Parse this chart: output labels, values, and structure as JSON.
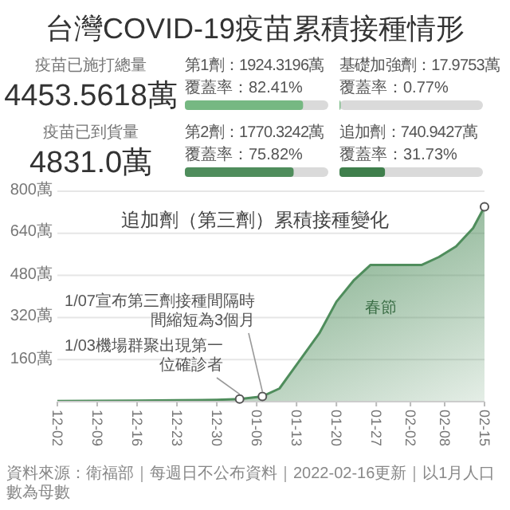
{
  "chart_data": [
    {
      "type": "other",
      "title": "台灣COVID-19疫苗累積接種情形",
      "annotations": [
        "疫苗已施打總量",
        "4453.5618萬",
        "疫苗已到貨量",
        "4831.0萬"
      ]
    },
    {
      "type": "other",
      "title": "第1劑：1924.3196萬",
      "values": [
        82.41
      ],
      "value_labels": [
        "覆蓋率：82.41%"
      ],
      "color": "#76b882"
    },
    {
      "type": "other",
      "title": "基礎加強劑：17.9753萬",
      "values": [
        0.77
      ],
      "value_labels": [
        "覆蓋率：0.77%"
      ],
      "color": "#76b882"
    },
    {
      "type": "other",
      "title": "第2劑：1770.3242萬",
      "values": [
        75.82
      ],
      "value_labels": [
        "覆蓋率：75.82%"
      ],
      "color": "#4f8d5c"
    },
    {
      "type": "other",
      "title": "追加劑：740.9427萬",
      "values": [
        31.73
      ],
      "value_labels": [
        "覆蓋率：31.73%"
      ],
      "color": "#3f7f4c"
    },
    {
      "type": "area",
      "title": "追加劑（第三劑）累積接種變化",
      "color": "#4f8d5c",
      "grid": "y",
      "marker": "none",
      "x": [
        "2021-12-02",
        "2021-12-09",
        "2021-12-16",
        "2021-12-23",
        "2021-12-30",
        "2022-01-03",
        "2022-01-07",
        "2022-01-10",
        "2022-01-12",
        "2022-01-14",
        "2022-01-17",
        "2022-01-20",
        "2022-01-23",
        "2022-01-26",
        "2022-02-04",
        "2022-02-07",
        "2022-02-10",
        "2022-02-13",
        "2022-02-15"
      ],
      "values": [
        2,
        3,
        4,
        5,
        7,
        10,
        20,
        50,
        110,
        170,
        260,
        380,
        460,
        520,
        520,
        550,
        590,
        660,
        741
      ],
      "xlim": [
        "2021-12-02",
        "2022-02-15"
      ],
      "xticks": [
        {
          "value": "2021-12-02",
          "label": "12-02"
        },
        {
          "value": "2021-12-09",
          "label": "12-09"
        },
        {
          "value": "2021-12-16",
          "label": "12-16"
        },
        {
          "value": "2021-12-23",
          "label": "12-23"
        },
        {
          "value": "2021-12-30",
          "label": "12-30"
        },
        {
          "value": "2022-01-06",
          "label": "01-06"
        },
        {
          "value": "2022-01-13",
          "label": "01-13"
        },
        {
          "value": "2022-01-20",
          "label": "01-20"
        },
        {
          "value": "2022-01-27",
          "label": "01-27"
        },
        {
          "value": "2022-02-02",
          "label": "02-02"
        },
        {
          "value": "2022-02-08",
          "label": "02-08"
        },
        {
          "value": "2022-02-15",
          "label": "02-15"
        }
      ],
      "ylim": [
        0,
        800
      ],
      "yticks": [
        {
          "value": 160,
          "label": "160萬"
        },
        {
          "value": 320,
          "label": "320萬"
        },
        {
          "value": 480,
          "label": "480萬"
        },
        {
          "value": 640,
          "label": "640萬"
        },
        {
          "value": 800,
          "label": "800萬"
        }
      ],
      "annotations": [
        {
          "text": "1/07宣布第三劑接種間隔時間縮短為3個月",
          "x": "2022-01-07",
          "y": 20
        },
        {
          "text": "1/03機場群聚出現第一位確診者",
          "x": "2022-01-03",
          "y": 10
        },
        "春節",
        "資料來源：衛福部｜每週日不公布資料｜2022-02-16更新｜以1月人口數為母數"
      ]
    }
  ]
}
